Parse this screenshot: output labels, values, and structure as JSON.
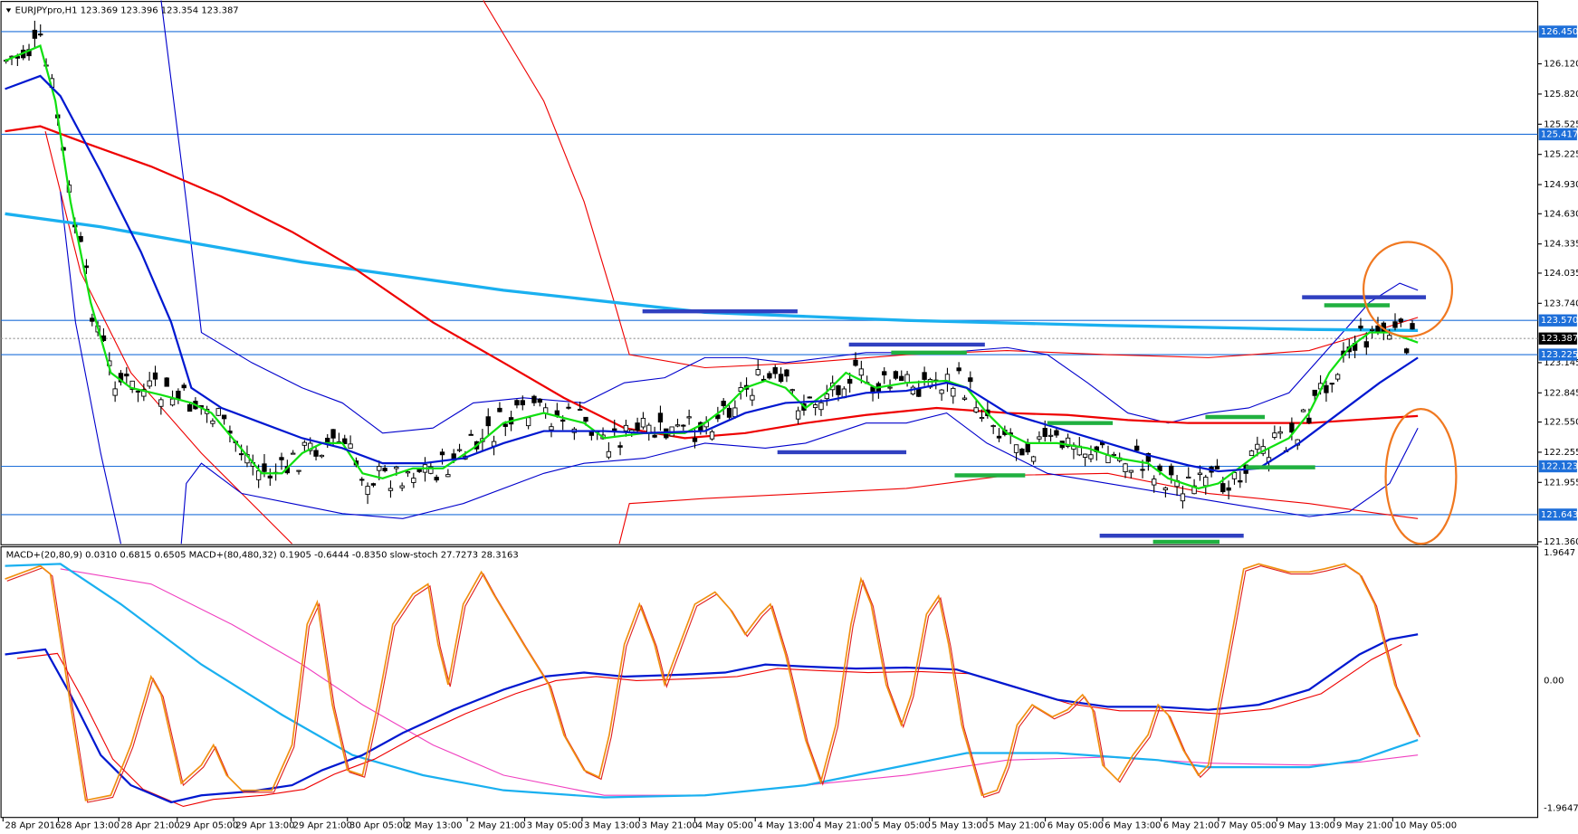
{
  "header": {
    "symbol_info": "EURJPYpro,H1  123.369 123.396 123.354 123.387"
  },
  "price_axis": {
    "ticks": [
      "126.120",
      "125.820",
      "125.525",
      "125.225",
      "124.930",
      "124.630",
      "124.335",
      "124.035",
      "123.740",
      "123.145",
      "122.845",
      "122.550",
      "122.255",
      "121.955",
      "121.360"
    ],
    "levels": [
      "126.450",
      "125.417",
      "123.570",
      "123.225",
      "122.123",
      "121.643"
    ],
    "current": "123.387"
  },
  "indicator": {
    "header": "MACD+(20,80,9) 0.0310 0.6815 0.6505  MACD+(80,480,32) 0.1905 -0.6444 -0.8350  slow-stoch 27.7273 28.3163",
    "axis": [
      "1.9647",
      "0.00",
      "-1.9647"
    ]
  },
  "time_axis": [
    "28 Apr 2016",
    "28 Apr 13:00",
    "28 Apr 21:00",
    "29 Apr 05:00",
    "29 Apr 13:00",
    "29 Apr 21:00",
    "30 Apr 05:00",
    "2 May 13:00",
    "2 May 21:00",
    "3 May 05:00",
    "3 May 13:00",
    "3 May 21:00",
    "4 May 05:00",
    "4 May 13:00",
    "4 May 21:00",
    "5 May 05:00",
    "5 May 13:00",
    "5 May 21:00",
    "6 May 05:00",
    "6 May 13:00",
    "6 May 21:00",
    "7 May 05:00",
    "9 May 13:00",
    "9 May 21:00",
    "10 May 05:00"
  ]
}
